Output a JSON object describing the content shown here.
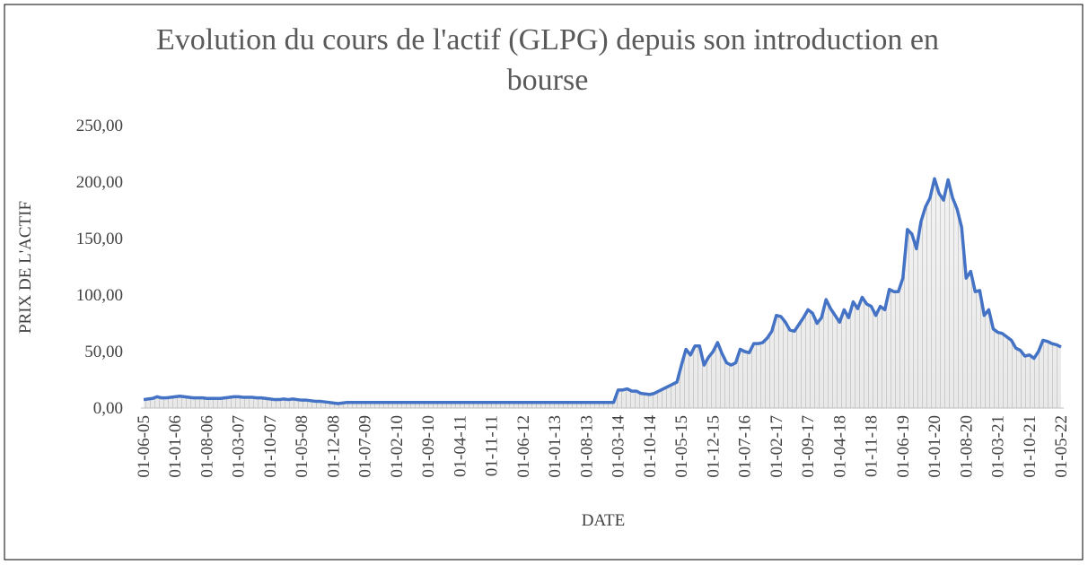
{
  "chart_data": {
    "type": "line",
    "title": "Evolution du cours de l'actif (GLPG) depuis son introduction en bourse",
    "xlabel": "DATE",
    "ylabel": "PRIX DE L'ACTIF",
    "categories": [
      "01-06-05",
      null,
      null,
      null,
      null,
      null,
      null,
      "01-01-06",
      null,
      null,
      null,
      null,
      null,
      null,
      "01-08-06",
      null,
      null,
      null,
      null,
      null,
      null,
      "01-03-07",
      null,
      null,
      null,
      null,
      null,
      null,
      "01-10-07",
      null,
      null,
      null,
      null,
      null,
      null,
      "01-05-08",
      null,
      null,
      null,
      null,
      null,
      null,
      "01-12-08",
      null,
      null,
      null,
      null,
      null,
      null,
      "01-07-09",
      null,
      null,
      null,
      null,
      null,
      null,
      "01-02-10",
      null,
      null,
      null,
      null,
      null,
      null,
      "01-09-10",
      null,
      null,
      null,
      null,
      null,
      null,
      "01-04-11",
      null,
      null,
      null,
      null,
      null,
      null,
      "01-11-11",
      null,
      null,
      null,
      null,
      null,
      null,
      "01-06-12",
      null,
      null,
      null,
      null,
      null,
      null,
      "01-01-13",
      null,
      null,
      null,
      null,
      null,
      null,
      "01-08-13",
      null,
      null,
      null,
      null,
      null,
      null,
      "01-03-14",
      null,
      null,
      null,
      null,
      null,
      null,
      "01-10-14",
      null,
      null,
      null,
      null,
      null,
      null,
      "01-05-15",
      null,
      null,
      null,
      null,
      null,
      null,
      "01-12-15",
      null,
      null,
      null,
      null,
      null,
      null,
      "01-07-16",
      null,
      null,
      null,
      null,
      null,
      null,
      "01-02-17",
      null,
      null,
      null,
      null,
      null,
      null,
      "01-09-17",
      null,
      null,
      null,
      null,
      null,
      null,
      "01-04-18",
      null,
      null,
      null,
      null,
      null,
      null,
      "01-11-18",
      null,
      null,
      null,
      null,
      null,
      null,
      "01-06-19",
      null,
      null,
      null,
      null,
      null,
      null,
      "01-01-20",
      null,
      null,
      null,
      null,
      null,
      null,
      "01-08-20",
      null,
      null,
      null,
      null,
      null,
      null,
      "01-03-21",
      null,
      null,
      null,
      null,
      null,
      null,
      "01-10-21",
      null,
      null,
      null,
      null,
      null,
      null,
      "01-05-22"
    ],
    "values": [
      7.5,
      8,
      8.5,
      10,
      9,
      9,
      9.5,
      10,
      10.5,
      10,
      9.5,
      9,
      9,
      9,
      8.5,
      8.5,
      8.5,
      8.5,
      9,
      9.5,
      10,
      10,
      9.5,
      9.5,
      9.5,
      9,
      9,
      8.5,
      8,
      7.5,
      7.5,
      8,
      7.5,
      8,
      7.5,
      7,
      7,
      6.5,
      6,
      6,
      5.5,
      5,
      4.5,
      4,
      4.5,
      5,
      5,
      5,
      5,
      5,
      5,
      5,
      5,
      5,
      5,
      5,
      5,
      5,
      5,
      5,
      5,
      5,
      5,
      5,
      5,
      5,
      5,
      5,
      5,
      5,
      5,
      5,
      5,
      5,
      5,
      5,
      5,
      5,
      5,
      5,
      5,
      5,
      5,
      5,
      5,
      5,
      5,
      5,
      5,
      5,
      5,
      5,
      5,
      5,
      5,
      5,
      5,
      5,
      5,
      5,
      5,
      5,
      5,
      5,
      5,
      16,
      16,
      17,
      15,
      15,
      13,
      12.5,
      12,
      13,
      15,
      17,
      19,
      21,
      23,
      38,
      52,
      47,
      55,
      55,
      38,
      45,
      50,
      58,
      48,
      40,
      38,
      40,
      52,
      50,
      49,
      57,
      57,
      58,
      62,
      68,
      82,
      81,
      76,
      69,
      68,
      74,
      80,
      87,
      84,
      75,
      80,
      96,
      88,
      82,
      76,
      87,
      80,
      94,
      88,
      98,
      92,
      90,
      82,
      90,
      87,
      105,
      103,
      103,
      115,
      158,
      154,
      141,
      165,
      178,
      186,
      203,
      190,
      184,
      202,
      186,
      176,
      160,
      115,
      121,
      103,
      104,
      82,
      87,
      70,
      67,
      66,
      63,
      60,
      53,
      51,
      46,
      47,
      44,
      50,
      60,
      59,
      57,
      56,
      54
    ],
    "color": "#4472c4",
    "ylim": [
      0,
      250
    ],
    "yticks": [
      {
        "value": 0,
        "label": "0,00"
      },
      {
        "value": 50,
        "label": "50,00"
      },
      {
        "value": 100,
        "label": "100,00"
      },
      {
        "value": 150,
        "label": "150,00"
      },
      {
        "value": 200,
        "label": "200,00"
      },
      {
        "value": 250,
        "label": "250,00"
      }
    ],
    "grid": false
  }
}
